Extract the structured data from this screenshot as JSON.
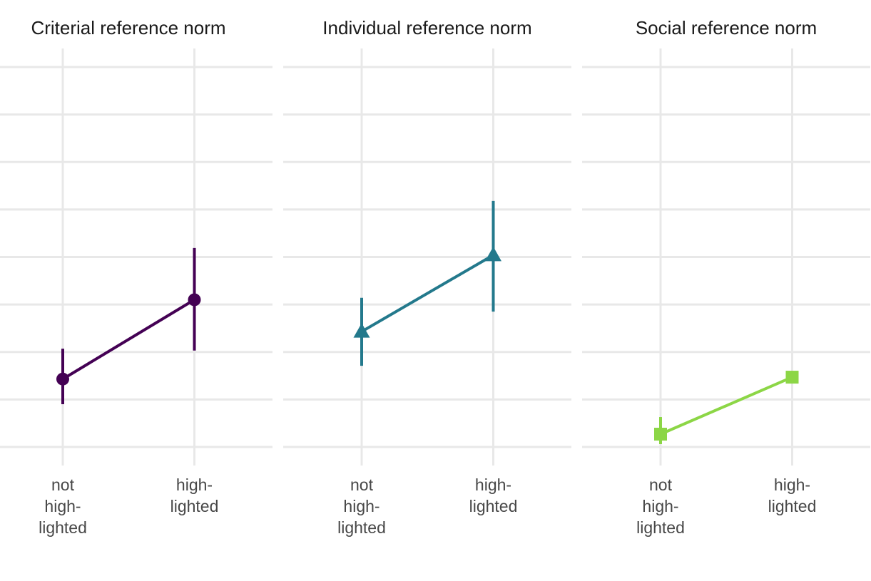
{
  "chart_data": {
    "type": "line",
    "description": "Three-facet point-range chart: mean with confidence interval at two x categories, connected by a line, one colored series per facet",
    "categories": [
      "not high-lighted",
      "high-lighted"
    ],
    "category_label_lines": [
      [
        "not",
        "high-",
        "lighted"
      ],
      [
        "high-",
        "lighted"
      ]
    ],
    "x_axis": {
      "title": "",
      "tick_labels_color": "#474747"
    },
    "y_axis": {
      "title": "",
      "tick_labels_visible": false,
      "visible_gridlines": 9,
      "units": "gridline-index (bottom visible gridline = 0, top visible gridline = 8)",
      "range": [
        0,
        8
      ]
    },
    "grid": true,
    "legend": false,
    "facets": [
      {
        "title": "Criterial reference norm",
        "marker": "circle",
        "color": "#440154",
        "values": [
          1.43,
          3.1
        ],
        "ci_lower": [
          0.9,
          2.03
        ],
        "ci_upper": [
          2.07,
          4.19
        ]
      },
      {
        "title": "Individual reference norm",
        "marker": "triangle",
        "color": "#23798c",
        "values": [
          2.43,
          4.04
        ],
        "ci_lower": [
          1.71,
          2.85
        ],
        "ci_upper": [
          3.14,
          5.18
        ]
      },
      {
        "title": "Social reference norm",
        "marker": "square",
        "color": "#8cd646",
        "values": [
          0.27,
          1.47
        ],
        "ci_lower": [
          0.06,
          null
        ],
        "ci_upper": [
          0.63,
          null
        ]
      }
    ]
  },
  "colors": {
    "background": "#ffffff",
    "gridline": "#e8e8e8",
    "facet_title_text": "#1a1a1a",
    "axis_label_text": "#474747",
    "series_purple": "#440154",
    "series_teal": "#23798c",
    "series_green": "#8cd646"
  }
}
